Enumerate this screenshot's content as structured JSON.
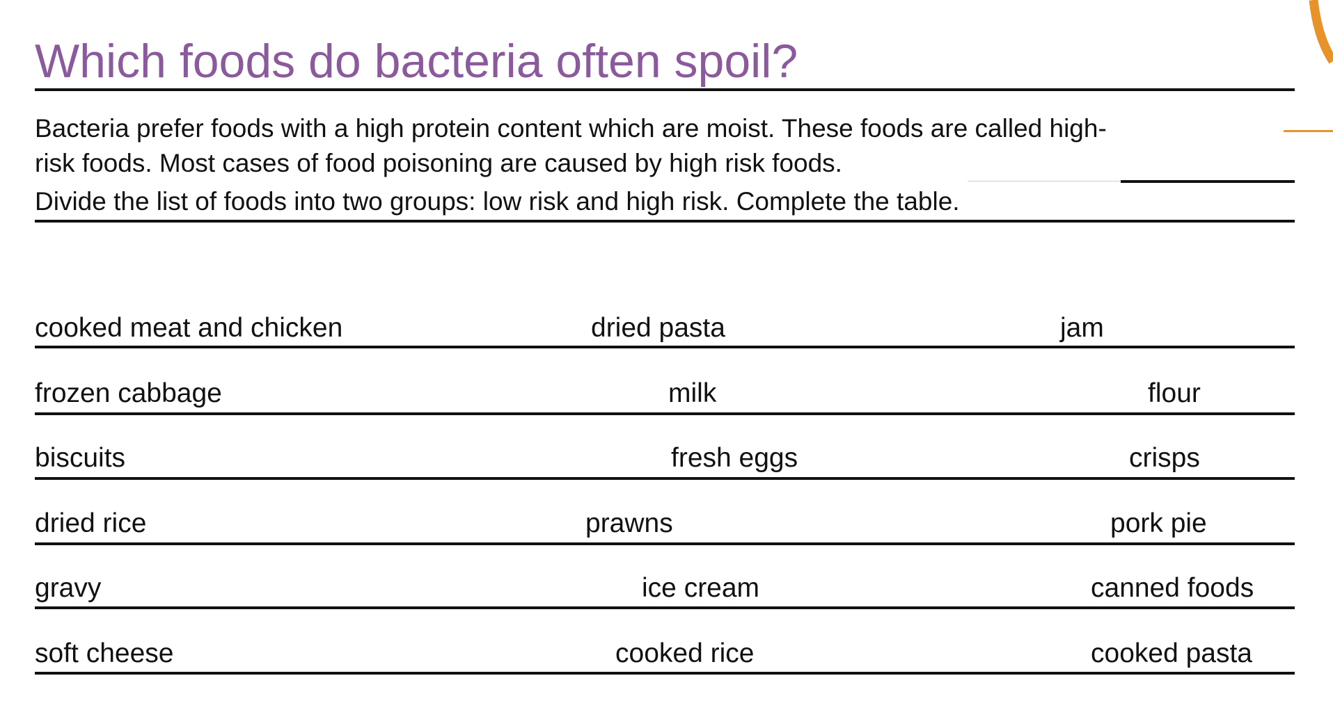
{
  "title": "Which foods do bacteria often spoil?",
  "intro": {
    "line1": "Bacteria prefer foods with a high protein content which are moist. These foods are called high-",
    "line2": "risk foods. Most cases of food poisoning are caused by high risk foods.",
    "instruction": "Divide the list of foods into two groups: low risk and high risk. Complete the table."
  },
  "foods": [
    [
      "cooked meat and chicken",
      "dried pasta",
      "jam"
    ],
    [
      "frozen cabbage",
      "milk",
      "flour"
    ],
    [
      "biscuits",
      "fresh eggs",
      "crisps"
    ],
    [
      "dried rice",
      "prawns",
      "pork pie"
    ],
    [
      "gravy",
      "ice cream",
      "canned foods"
    ],
    [
      "soft cheese",
      "cooked rice",
      "cooked pasta"
    ]
  ],
  "colors": {
    "title": "#8a5a9c",
    "accent": "#e8922a",
    "text": "#111111"
  }
}
